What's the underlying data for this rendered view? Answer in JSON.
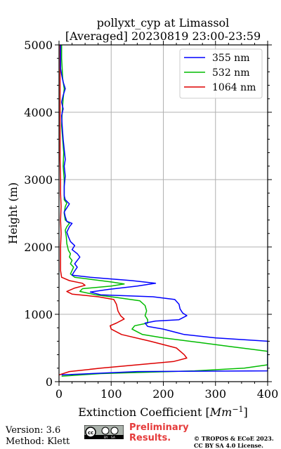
{
  "chart_data": {
    "type": "line",
    "title": "pollyxt_cyp at Limassol",
    "subtitle": "[Averaged] 20230819 23:00-23:59",
    "xlabel": "Extinction Coefficient [Mm⁻¹]",
    "xlabel_main": "Extinction Coefficient ",
    "xlabel_unit": "Mm",
    "xlabel_exp": "−1",
    "xlabel_close": "]",
    "xlabel_open": "[",
    "ylabel": "Height (m)",
    "xlim": [
      0,
      400
    ],
    "ylim": [
      0,
      5000
    ],
    "xticks": [
      0,
      100,
      200,
      300,
      400
    ],
    "yticks": [
      0,
      1000,
      2000,
      3000,
      4000,
      5000
    ],
    "grid": true,
    "legend_position": "top-right",
    "series": [
      {
        "name": "355 nm",
        "color": "#0000ff",
        "points": [
          [
            5,
            100
          ],
          [
            150,
            150
          ],
          [
            400,
            160
          ],
          [
            400,
            600
          ],
          [
            300,
            650
          ],
          [
            240,
            700
          ],
          [
            200,
            780
          ],
          [
            170,
            820
          ],
          [
            165,
            870
          ],
          [
            185,
            900
          ],
          [
            230,
            920
          ],
          [
            245,
            980
          ],
          [
            237,
            1020
          ],
          [
            232,
            1080
          ],
          [
            230,
            1150
          ],
          [
            222,
            1220
          ],
          [
            180,
            1260
          ],
          [
            80,
            1290
          ],
          [
            60,
            1330
          ],
          [
            95,
            1370
          ],
          [
            150,
            1420
          ],
          [
            185,
            1460
          ],
          [
            140,
            1500
          ],
          [
            60,
            1550
          ],
          [
            25,
            1580
          ],
          [
            28,
            1620
          ],
          [
            35,
            1700
          ],
          [
            30,
            1750
          ],
          [
            35,
            1800
          ],
          [
            40,
            1850
          ],
          [
            35,
            1900
          ],
          [
            25,
            1960
          ],
          [
            30,
            2020
          ],
          [
            22,
            2080
          ],
          [
            18,
            2150
          ],
          [
            15,
            2220
          ],
          [
            20,
            2300
          ],
          [
            25,
            2350
          ],
          [
            15,
            2380
          ],
          [
            12,
            2450
          ],
          [
            10,
            2520
          ],
          [
            15,
            2580
          ],
          [
            20,
            2640
          ],
          [
            12,
            2700
          ],
          [
            10,
            2760
          ],
          [
            10,
            2900
          ],
          [
            12,
            3050
          ],
          [
            10,
            3200
          ],
          [
            12,
            3300
          ],
          [
            10,
            3450
          ],
          [
            8,
            3600
          ],
          [
            6,
            3800
          ],
          [
            5,
            3950
          ],
          [
            8,
            4050
          ],
          [
            5,
            4150
          ],
          [
            8,
            4250
          ],
          [
            12,
            4350
          ],
          [
            8,
            4450
          ],
          [
            5,
            4560
          ],
          [
            3,
            4650
          ],
          [
            3,
            4800
          ],
          [
            3,
            4950
          ],
          [
            3,
            5000
          ]
        ]
      },
      {
        "name": "532 nm",
        "color": "#00bb00",
        "points": [
          [
            5,
            80
          ],
          [
            80,
            120
          ],
          [
            260,
            160
          ],
          [
            355,
            200
          ],
          [
            400,
            250
          ],
          [
            400,
            450
          ],
          [
            370,
            480
          ],
          [
            330,
            520
          ],
          [
            270,
            580
          ],
          [
            200,
            650
          ],
          [
            160,
            700
          ],
          [
            140,
            780
          ],
          [
            145,
            830
          ],
          [
            170,
            870
          ],
          [
            170,
            920
          ],
          [
            165,
            980
          ],
          [
            168,
            1050
          ],
          [
            165,
            1130
          ],
          [
            155,
            1200
          ],
          [
            110,
            1250
          ],
          [
            70,
            1290
          ],
          [
            40,
            1340
          ],
          [
            45,
            1380
          ],
          [
            100,
            1420
          ],
          [
            125,
            1450
          ],
          [
            100,
            1480
          ],
          [
            60,
            1520
          ],
          [
            30,
            1550
          ],
          [
            22,
            1600
          ],
          [
            25,
            1650
          ],
          [
            28,
            1700
          ],
          [
            22,
            1750
          ],
          [
            25,
            1800
          ],
          [
            20,
            1850
          ],
          [
            22,
            1900
          ],
          [
            18,
            1950
          ],
          [
            15,
            2050
          ],
          [
            14,
            2150
          ],
          [
            12,
            2250
          ],
          [
            15,
            2300
          ],
          [
            20,
            2350
          ],
          [
            12,
            2400
          ],
          [
            10,
            2500
          ],
          [
            12,
            2600
          ],
          [
            15,
            2650
          ],
          [
            10,
            2700
          ],
          [
            10,
            2850
          ],
          [
            10,
            3000
          ],
          [
            8,
            3200
          ],
          [
            9,
            3400
          ],
          [
            7,
            3600
          ],
          [
            5,
            3800
          ],
          [
            6,
            4000
          ],
          [
            8,
            4200
          ],
          [
            10,
            4350
          ],
          [
            7,
            4500
          ],
          [
            6,
            4650
          ],
          [
            5,
            4800
          ],
          [
            5,
            4950
          ],
          [
            5,
            5000
          ]
        ]
      },
      {
        "name": "1064 nm",
        "color": "#dd0000",
        "points": [
          [
            0,
            100
          ],
          [
            20,
            150
          ],
          [
            80,
            200
          ],
          [
            150,
            250
          ],
          [
            220,
            300
          ],
          [
            245,
            350
          ],
          [
            240,
            400
          ],
          [
            225,
            500
          ],
          [
            175,
            600
          ],
          [
            120,
            700
          ],
          [
            100,
            780
          ],
          [
            98,
            830
          ],
          [
            110,
            870
          ],
          [
            125,
            930
          ],
          [
            118,
            980
          ],
          [
            113,
            1050
          ],
          [
            110,
            1150
          ],
          [
            105,
            1220
          ],
          [
            75,
            1260
          ],
          [
            25,
            1300
          ],
          [
            15,
            1340
          ],
          [
            30,
            1390
          ],
          [
            50,
            1430
          ],
          [
            45,
            1460
          ],
          [
            20,
            1500
          ],
          [
            5,
            1550
          ],
          [
            3,
            1650
          ],
          [
            3,
            1800
          ],
          [
            3,
            2000
          ],
          [
            4,
            2200
          ],
          [
            3,
            2400
          ],
          [
            4,
            2600
          ],
          [
            3,
            2800
          ],
          [
            3,
            3000
          ],
          [
            2,
            3300
          ],
          [
            2,
            3600
          ],
          [
            2,
            3900
          ],
          [
            2,
            4200
          ],
          [
            2,
            4500
          ],
          [
            2,
            4800
          ],
          [
            2,
            5000
          ]
        ]
      }
    ]
  },
  "footer": {
    "version": "Version: 3.6",
    "method": "Method: Klett",
    "cc_label": "cc BY SA",
    "preliminary_line1": "Preliminary",
    "preliminary_line2": "Results.",
    "copyright_line1": "© TROPOS & ECoE 2023.",
    "copyright_line2": "CC BY SA 4.0 License."
  }
}
